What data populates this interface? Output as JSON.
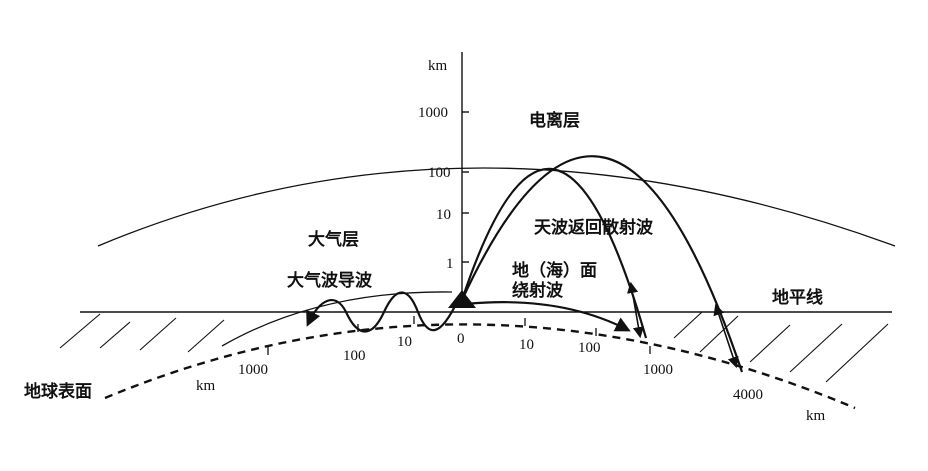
{
  "labels": {
    "ionosphere": "电离层",
    "atmosphere": "大气层",
    "tropo_duct": "大气波导波",
    "ground_wave_line1": "地（海）面",
    "ground_wave_line2": "绕射波",
    "sky_wave": "天波返回散射波",
    "horizon": "地平线",
    "earth_surface": "地球表面"
  },
  "vertical_axis": {
    "unit": "km",
    "ticks": [
      "1000",
      "100",
      "10",
      "1"
    ]
  },
  "surface_scale": {
    "left": [
      "km",
      "1000",
      "100",
      "10"
    ],
    "center": "0",
    "right": [
      "10",
      "100",
      "1000",
      "4000",
      "km"
    ]
  }
}
